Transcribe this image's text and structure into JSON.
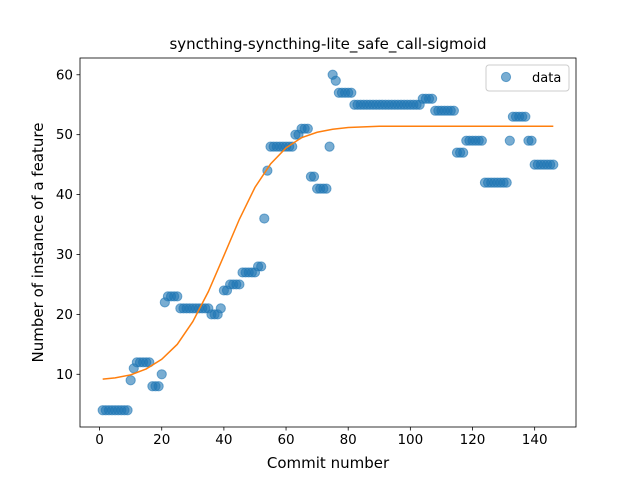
{
  "chart_data": {
    "type": "scatter",
    "title": "syncthing-syncthing-lite_safe_call-sigmoid",
    "xlabel": "Commit number",
    "ylabel": "Number of instance of a feature",
    "xlim": [
      -6.3,
      153.3
    ],
    "ylim": [
      1.2,
      62.8
    ],
    "xticks": [
      0,
      20,
      40,
      60,
      80,
      100,
      120,
      140
    ],
    "yticks": [
      10,
      20,
      30,
      40,
      50,
      60
    ],
    "grid": false,
    "legend_position": "top-right",
    "series": [
      {
        "name": "data",
        "kind": "scatter",
        "color": "#1f77b4",
        "x": [
          1,
          2,
          3,
          4,
          5,
          6,
          7,
          8,
          9,
          10,
          11,
          12,
          13,
          14,
          15,
          16,
          17,
          18,
          19,
          20,
          21,
          22,
          23,
          24,
          25,
          26,
          27,
          28,
          29,
          30,
          31,
          32,
          33,
          34,
          35,
          36,
          37,
          38,
          39,
          40,
          41,
          42,
          43,
          44,
          45,
          46,
          47,
          48,
          49,
          50,
          51,
          52,
          53,
          54,
          55,
          56,
          57,
          58,
          59,
          60,
          61,
          62,
          63,
          64,
          65,
          66,
          67,
          68,
          69,
          70,
          71,
          72,
          73,
          74,
          75,
          76,
          77,
          78,
          79,
          80,
          81,
          82,
          83,
          84,
          85,
          86,
          87,
          88,
          89,
          90,
          91,
          92,
          93,
          94,
          95,
          96,
          97,
          98,
          99,
          100,
          101,
          102,
          103,
          104,
          105,
          106,
          107,
          108,
          109,
          110,
          111,
          112,
          113,
          114,
          115,
          116,
          117,
          118,
          119,
          120,
          121,
          122,
          123,
          124,
          125,
          126,
          127,
          128,
          129,
          130,
          131,
          132,
          133,
          134,
          135,
          136,
          137,
          138,
          139,
          140,
          141,
          142,
          143,
          144,
          145,
          146
        ],
        "y": [
          4,
          4,
          4,
          4,
          4,
          4,
          4,
          4,
          4,
          9,
          11,
          12,
          12,
          12,
          12,
          12,
          8,
          8,
          8,
          10,
          22,
          23,
          23,
          23,
          23,
          21,
          21,
          21,
          21,
          21,
          21,
          21,
          21,
          21,
          21,
          20,
          20,
          20,
          21,
          24,
          24,
          25,
          25,
          25,
          25,
          27,
          27,
          27,
          27,
          27,
          28,
          28,
          36,
          44,
          48,
          48,
          48,
          48,
          48,
          48,
          48,
          48,
          50,
          50,
          51,
          51,
          51,
          43,
          43,
          41,
          41,
          41,
          41,
          48,
          60,
          59,
          57,
          57,
          57,
          57,
          57,
          55,
          55,
          55,
          55,
          55,
          55,
          55,
          55,
          55,
          55,
          55,
          55,
          55,
          55,
          55,
          55,
          55,
          55,
          55,
          55,
          55,
          55,
          56,
          56,
          56,
          56,
          54,
          54,
          54,
          54,
          54,
          54,
          54,
          47,
          47,
          47,
          49,
          49,
          49,
          49,
          49,
          49,
          42,
          42,
          42,
          42,
          42,
          42,
          42,
          42,
          49,
          53,
          53,
          53,
          53,
          53,
          49,
          49,
          45,
          45,
          45,
          45,
          45,
          45,
          45
        ]
      },
      {
        "name": "",
        "kind": "line",
        "color": "#ff7f0e",
        "x": [
          1,
          5,
          10,
          15,
          20,
          25,
          30,
          35,
          40,
          45,
          50,
          55,
          60,
          65,
          70,
          75,
          80,
          85,
          90,
          95,
          100,
          110,
          120,
          130,
          140,
          146
        ],
        "y": [
          9.2,
          9.4,
          9.9,
          10.9,
          12.5,
          15.0,
          18.8,
          23.8,
          29.8,
          35.9,
          41.2,
          45.1,
          47.8,
          49.5,
          50.4,
          50.9,
          51.2,
          51.3,
          51.4,
          51.4,
          51.4,
          51.4,
          51.4,
          51.4,
          51.4,
          51.4
        ]
      }
    ]
  }
}
